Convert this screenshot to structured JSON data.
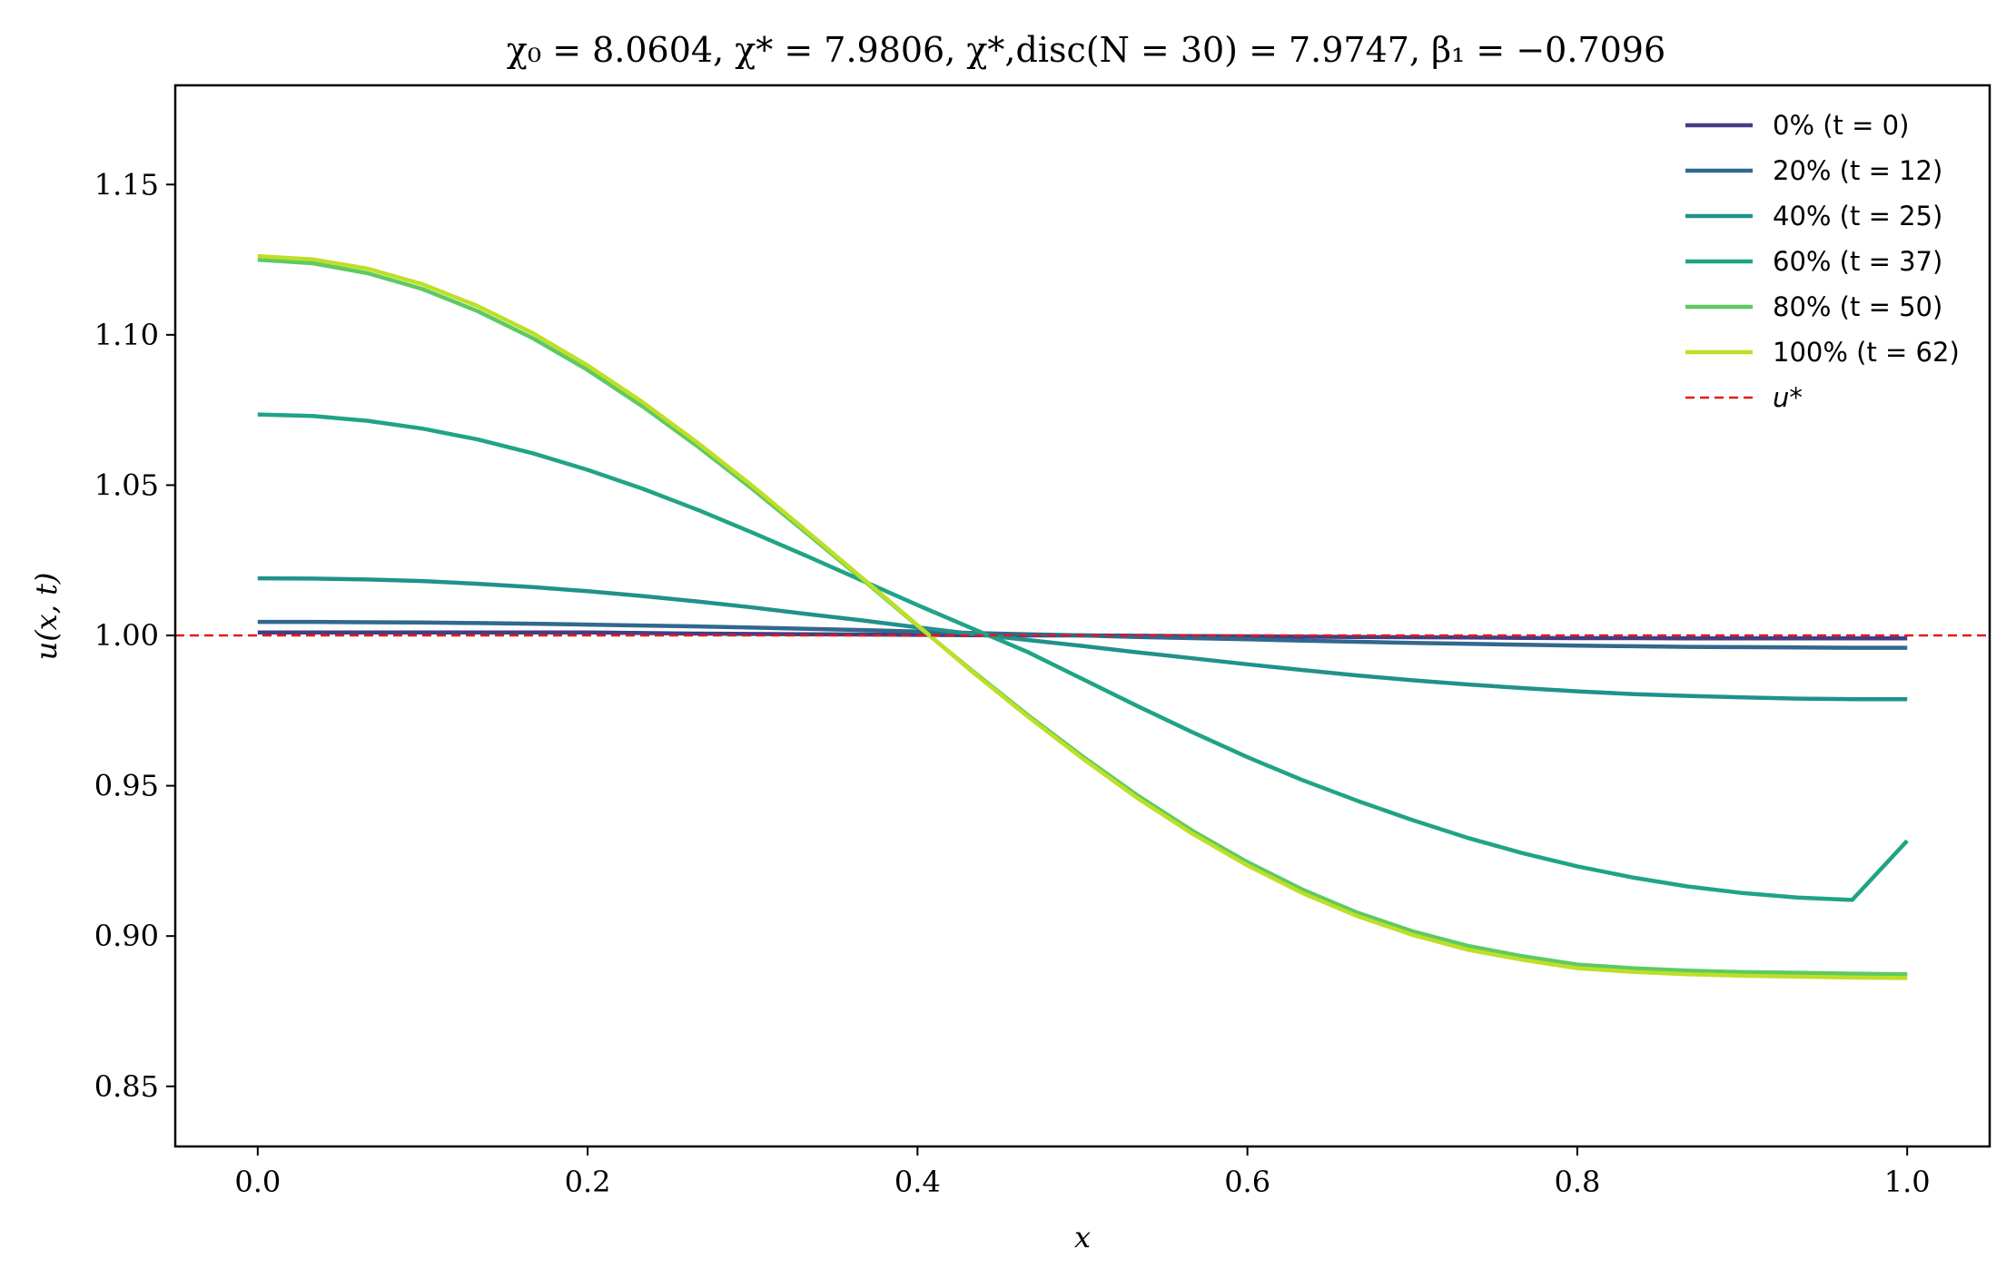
{
  "chart_data": {
    "type": "line",
    "title": "χ₀ = 8.0604,  χ* = 7.9806,  χ*,disc(N = 30) = 7.9747,  β₁ = −0.7096",
    "xlabel": "x",
    "ylabel": "u(x, t)",
    "xlim": [
      -0.05,
      1.05
    ],
    "ylim": [
      0.83,
      1.183
    ],
    "xticks": [
      0.0,
      0.2,
      0.4,
      0.6,
      0.8,
      1.0
    ],
    "xtick_labels": [
      "0.0",
      "0.2",
      "0.4",
      "0.6",
      "0.8",
      "1.0"
    ],
    "yticks": [
      0.85,
      0.9,
      0.95,
      1.0,
      1.05,
      1.1,
      1.15
    ],
    "ytick_labels": [
      "0.85",
      "0.90",
      "0.95",
      "1.00",
      "1.05",
      "1.10",
      "1.15"
    ],
    "grid": false,
    "legend_position": "top-right",
    "x": [
      0.0,
      0.0333,
      0.0667,
      0.1,
      0.1333,
      0.1667,
      0.2,
      0.2333,
      0.2667,
      0.3,
      0.3333,
      0.3667,
      0.4,
      0.4333,
      0.4667,
      0.5,
      0.5333,
      0.5667,
      0.6,
      0.6333,
      0.6667,
      0.7,
      0.7333,
      0.7667,
      0.8,
      0.8333,
      0.8667,
      0.9,
      0.9333,
      0.9667,
      1.0
    ],
    "series": [
      {
        "name": "0% (t = 0)",
        "color": "#433e85",
        "values": [
          1.001,
          1.001,
          1.001,
          1.001,
          1.001,
          1.001,
          1.001,
          1.0008,
          1.0006,
          1.0005,
          1.0004,
          1.0003,
          1.0002,
          1.0001,
          1.0,
          1.0,
          0.9999,
          0.9998,
          0.9997,
          0.9996,
          0.9995,
          0.9994,
          0.9993,
          0.9992,
          0.9991,
          0.9991,
          0.999,
          0.999,
          0.999,
          0.999,
          0.999
        ]
      },
      {
        "name": "20% (t = 12)",
        "color": "#31688e",
        "values": [
          1.0045,
          1.0045,
          1.0044,
          1.0043,
          1.0041,
          1.0039,
          1.0036,
          1.0033,
          1.003,
          1.0026,
          1.0022,
          1.0018,
          1.0013,
          1.0008,
          1.0004,
          1.0,
          0.9995,
          0.9991,
          0.9987,
          0.9983,
          0.9979,
          0.9975,
          0.9972,
          0.9969,
          0.9966,
          0.9964,
          0.9962,
          0.9961,
          0.996,
          0.9959,
          0.9959
        ]
      },
      {
        "name": "40% (t = 25)",
        "color": "#21918c",
        "values": [
          1.019,
          1.0189,
          1.0186,
          1.0181,
          1.0172,
          1.0161,
          1.0147,
          1.0131,
          1.0113,
          1.0093,
          1.0071,
          1.005,
          1.0027,
          1.0005,
          0.9985,
          0.9965,
          0.9944,
          0.9924,
          0.9904,
          0.9885,
          0.9867,
          0.9851,
          0.9837,
          0.9825,
          0.9814,
          0.9805,
          0.9799,
          0.9794,
          0.979,
          0.9788,
          0.9788
        ]
      },
      {
        "name": "60% (t = 37)",
        "color": "#20a386",
        "values": [
          1.0735,
          1.073,
          1.0714,
          1.0688,
          1.0652,
          1.0606,
          1.0551,
          1.0488,
          1.0418,
          1.0342,
          1.0263,
          1.0182,
          1.0101,
          1.0023,
          0.9945,
          0.9855,
          0.9765,
          0.9678,
          0.9595,
          0.9519,
          0.945,
          0.9386,
          0.9327,
          0.9276,
          0.9232,
          0.9195,
          0.9165,
          0.9143,
          0.9128,
          0.912,
          0.9317
        ]
      },
      {
        "name": "80% (t = 50)",
        "color": "#5ec962",
        "values": [
          1.125,
          1.1238,
          1.1205,
          1.1152,
          1.1079,
          1.0989,
          1.0883,
          1.0762,
          1.0629,
          1.0487,
          1.0338,
          1.0186,
          1.0032,
          0.9882,
          0.9736,
          0.9598,
          0.9468,
          0.935,
          0.9246,
          0.9155,
          0.9078,
          0.9016,
          0.8968,
          0.8933,
          0.8905,
          0.8893,
          0.8885,
          0.888,
          0.8878,
          0.8875,
          0.8873
        ]
      },
      {
        "name": "100% (t = 62)",
        "color": "#bddf26",
        "values": [
          1.1262,
          1.1251,
          1.122,
          1.1168,
          1.1096,
          1.1006,
          1.0898,
          1.0776,
          1.0641,
          1.0497,
          1.0345,
          1.019,
          1.0034,
          0.9879,
          0.9731,
          0.9591,
          0.9459,
          0.934,
          0.9235,
          0.9143,
          0.9066,
          0.9004,
          0.8955,
          0.8921,
          0.8893,
          0.8881,
          0.8873,
          0.8868,
          0.8865,
          0.8862,
          0.886
        ]
      },
      {
        "name": "u*",
        "color": "#e31a1c",
        "dashed": true,
        "reference_y": 1.0
      }
    ]
  }
}
